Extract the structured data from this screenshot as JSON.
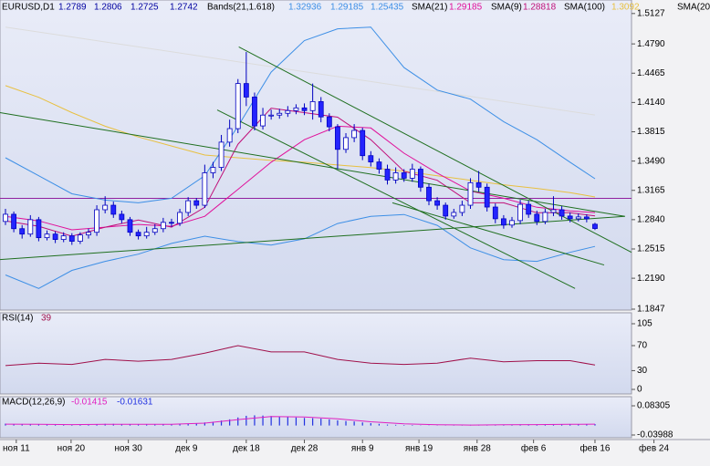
{
  "header": {
    "symbol": "EURUSD,D1"
  },
  "chart_data": [
    {
      "type": "candlestick",
      "open": [
        1.282,
        1.29,
        1.274,
        1.268,
        1.284,
        1.264,
        1.268,
        1.262,
        1.266,
        1.26,
        1.267,
        1.27,
        1.295,
        1.3,
        1.29,
        1.284,
        1.27,
        1.266,
        1.27,
        1.274,
        1.281,
        1.28,
        1.292,
        1.305,
        1.3,
        1.336,
        1.342,
        1.37,
        1.385,
        1.435,
        1.42,
        1.388,
        1.4,
        1.4,
        1.402,
        1.405,
        1.408,
        1.405,
        1.415,
        1.398,
        1.387,
        1.362,
        1.375,
        1.383,
        1.355,
        1.348,
        1.34,
        1.328,
        1.336,
        1.33,
        1.34,
        1.32,
        1.305,
        1.3,
        1.288,
        1.292,
        1.3,
        1.325,
        1.32,
        1.298,
        1.285,
        1.278,
        1.283,
        1.301,
        1.29,
        1.282,
        1.292,
        1.295,
        1.288,
        1.285,
        1.287,
        1.2789
      ],
      "high": [
        1.296,
        1.293,
        1.278,
        1.289,
        1.287,
        1.272,
        1.271,
        1.27,
        1.269,
        1.27,
        1.274,
        1.3,
        1.31,
        1.304,
        1.294,
        1.287,
        1.273,
        1.276,
        1.279,
        1.286,
        1.285,
        1.296,
        1.309,
        1.308,
        1.345,
        1.348,
        1.378,
        1.395,
        1.44,
        1.47,
        1.425,
        1.408,
        1.406,
        1.407,
        1.41,
        1.412,
        1.413,
        1.435,
        1.42,
        1.402,
        1.39,
        1.38,
        1.39,
        1.386,
        1.36,
        1.352,
        1.345,
        1.342,
        1.34,
        1.346,
        1.343,
        1.324,
        1.309,
        1.303,
        1.296,
        1.305,
        1.33,
        1.338,
        1.324,
        1.302,
        1.289,
        1.287,
        1.306,
        1.305,
        1.294,
        1.296,
        1.31,
        1.299,
        1.292,
        1.291,
        1.29,
        1.2806
      ],
      "low": [
        1.278,
        1.27,
        1.263,
        1.265,
        1.26,
        1.261,
        1.258,
        1.259,
        1.256,
        1.257,
        1.263,
        1.266,
        1.291,
        1.286,
        1.28,
        1.266,
        1.262,
        1.263,
        1.267,
        1.27,
        1.276,
        1.277,
        1.288,
        1.296,
        1.297,
        1.33,
        1.338,
        1.365,
        1.38,
        1.41,
        1.383,
        1.384,
        1.395,
        1.396,
        1.398,
        1.401,
        1.4,
        1.395,
        1.392,
        1.382,
        1.34,
        1.358,
        1.37,
        1.35,
        1.343,
        1.335,
        1.323,
        1.324,
        1.326,
        1.326,
        1.315,
        1.3,
        1.295,
        1.284,
        1.285,
        1.288,
        1.296,
        1.315,
        1.293,
        1.28,
        1.274,
        1.275,
        1.279,
        1.286,
        1.278,
        1.279,
        1.288,
        1.284,
        1.281,
        1.282,
        1.281,
        1.2725
      ],
      "close": [
        1.29,
        1.274,
        1.268,
        1.284,
        1.264,
        1.268,
        1.262,
        1.266,
        1.26,
        1.267,
        1.27,
        1.295,
        1.3,
        1.29,
        1.284,
        1.27,
        1.266,
        1.27,
        1.274,
        1.281,
        1.28,
        1.292,
        1.305,
        1.3,
        1.336,
        1.342,
        1.37,
        1.385,
        1.435,
        1.42,
        1.388,
        1.4,
        1.4,
        1.402,
        1.405,
        1.408,
        1.405,
        1.415,
        1.398,
        1.387,
        1.362,
        1.375,
        1.383,
        1.355,
        1.348,
        1.34,
        1.328,
        1.336,
        1.33,
        1.34,
        1.32,
        1.305,
        1.3,
        1.288,
        1.292,
        1.3,
        1.325,
        1.32,
        1.298,
        1.285,
        1.278,
        1.283,
        1.301,
        1.29,
        1.282,
        1.292,
        1.295,
        1.288,
        1.285,
        1.287,
        1.285,
        1.2742
      ],
      "up_color": "#ffffff",
      "down_color": "#2424ff",
      "outline_color": "#0000c0",
      "xlim": [
        -0.66,
        75.4
      ],
      "xticks": [
        {
          "value": 1.3,
          "label": "ноя 11"
        },
        {
          "value": 7.9,
          "label": "ноя 20"
        },
        {
          "value": 14.8,
          "label": "ноя 30"
        },
        {
          "value": 21.8,
          "label": "дек 9"
        },
        {
          "value": 29,
          "label": "дек 18"
        },
        {
          "value": 36,
          "label": "дек 28"
        },
        {
          "value": 43,
          "label": "янв 9"
        },
        {
          "value": 49.8,
          "label": "янв 19"
        },
        {
          "value": 56.8,
          "label": "янв 28"
        },
        {
          "value": 63.6,
          "label": "фев 6"
        },
        {
          "value": 71,
          "label": "фев 16"
        },
        {
          "value": 78.1,
          "label": "фев 24"
        }
      ],
      "ylim": [
        1.1837,
        1.5277
      ],
      "yticks": [
        1.5127,
        {
          "value": 1.479,
          "label": "1.4790"
        },
        1.4465,
        {
          "value": 1.414,
          "label": "1.4140"
        },
        1.3815,
        {
          "value": 1.349,
          "label": "1.3490"
        },
        1.3165,
        {
          "value": 1.284,
          "label": "1.2840"
        },
        1.2515,
        {
          "value": 1.219,
          "label": "1.2190"
        },
        1.1847
      ],
      "indicator_x": [
        0,
        4,
        8,
        12,
        16,
        20,
        24,
        28,
        32,
        36,
        40,
        44,
        48,
        52,
        56,
        60,
        64,
        68,
        71
      ],
      "bands": {
        "name": "Bands(21,1.618)",
        "color": "#3d8fe6",
        "upper": [
          1.3527,
          1.3327,
          1.3127,
          1.3057,
          1.3027,
          1.3077,
          1.3327,
          1.3877,
          1.4477,
          1.4827,
          1.4957,
          1.4977,
          1.4527,
          1.4277,
          1.4177,
          1.3927,
          1.3727,
          1.3477,
          1.32936
        ],
        "lower": [
          1.2227,
          1.2077,
          1.2277,
          1.2377,
          1.2457,
          1.2577,
          1.2657,
          1.2597,
          1.2557,
          1.2627,
          1.2797,
          1.2877,
          1.2897,
          1.2777,
          1.2527,
          1.2397,
          1.2377,
          1.2477,
          1.25435
        ]
      },
      "sma": [
        {
          "name": "SMA(21)",
          "color": "#e0109a",
          "values": [
            1.2877,
            1.2827,
            1.2727,
            1.2757,
            1.2787,
            1.2767,
            1.2877,
            1.3177,
            1.3477,
            1.3727,
            1.3877,
            1.3857,
            1.3577,
            1.3357,
            1.3157,
            1.3077,
            1.2977,
            1.2937,
            1.29185
          ]
        },
        {
          "name": "SMA(9)",
          "color": "#c0107a",
          "values": [
            1.2827,
            1.2767,
            1.2657,
            1.2757,
            1.2837,
            1.2757,
            1.2977,
            1.3677,
            1.4077,
            1.4027,
            1.3977,
            1.3727,
            1.3377,
            1.3277,
            1.3027,
            1.3027,
            1.2917,
            1.2917,
            1.28818
          ]
        },
        {
          "name": "SMA(100)",
          "color": "#e8c040",
          "values": [
            1.4327,
            1.4197,
            1.4027,
            1.3877,
            1.3757,
            1.3657,
            1.3557,
            1.3527,
            1.3497,
            1.3477,
            1.3447,
            1.3417,
            1.3377,
            1.3327,
            1.3277,
            1.3227,
            1.3187,
            1.314,
            1.3092
          ]
        },
        {
          "name": "SMA(20",
          "color": "#dcdcdc",
          "values": [
            1.4977,
            1.4922,
            1.4867,
            1.4812,
            1.4757,
            1.4702,
            1.4647,
            1.4592,
            1.4537,
            1.4482,
            1.4427,
            1.4372,
            1.4317,
            1.4262,
            1.4207,
            1.4152,
            1.4097,
            1.4042,
            1.4001
          ]
        }
      ],
      "hline": {
        "value": 1.3077,
        "color": "#9020a0"
      },
      "trendlines": {
        "color": "#1f6f1f",
        "lines": [
          {
            "x": [
              -0.66,
              74.6
            ],
            "y": [
              1.4027,
              1.2877
            ]
          },
          {
            "x": [
              -0.66,
              74.6
            ],
            "y": [
              1.2397,
              1.2877
            ]
          },
          {
            "x": [
              28.1,
              75.4
            ],
            "y": [
              1.4757,
              1.2477
            ]
          },
          {
            "x": [
              25.5,
              68.6
            ],
            "y": [
              1.4057,
              1.2077
            ]
          },
          {
            "x": [
              46.6,
              72.1
            ],
            "y": [
              1.3027,
              1.2337
            ]
          }
        ]
      }
    },
    {
      "type": "line",
      "title": "RSI(14)",
      "color": "#a0104a",
      "x": [
        0,
        4,
        8,
        12,
        16,
        20,
        24,
        28,
        32,
        36,
        40,
        44,
        48,
        52,
        56,
        60,
        64,
        68,
        71
      ],
      "values": [
        38,
        42,
        40,
        48,
        45,
        48,
        58,
        70,
        60,
        60,
        48,
        42,
        40,
        42,
        50,
        44,
        46,
        46,
        39
      ],
      "ylim": [
        -7.3,
        122.5
      ],
      "yticks": [
        105,
        70,
        30,
        0
      ]
    },
    {
      "type": "macd",
      "title": "MACD(12,26,9)",
      "legend_values": [
        "-0.01415",
        "-0.01631"
      ],
      "color": "#2030e0",
      "signal_color": "#e020c0",
      "histogram": [
        0.008,
        0.006,
        0.005,
        0.006,
        0.005,
        0.004,
        0.004,
        0.003,
        0.003,
        0.003,
        0.003,
        0.005,
        0.007,
        0.007,
        0.006,
        0.005,
        0.004,
        0.004,
        0.004,
        0.005,
        0.005,
        0.006,
        0.008,
        0.009,
        0.013,
        0.016,
        0.021,
        0.026,
        0.034,
        0.041,
        0.043,
        0.042,
        0.04,
        0.038,
        0.036,
        0.034,
        0.032,
        0.031,
        0.029,
        0.026,
        0.022,
        0.019,
        0.017,
        0.013,
        0.01,
        0.007,
        0.004,
        0.003,
        0.002,
        0.002,
        0.001,
        0.001,
        0.001,
        0.001,
        0.002,
        0.002,
        0.003,
        0.004,
        0.004,
        0.003,
        0.003,
        0.004,
        0.005,
        0.005,
        0.005,
        0.006,
        0.006,
        0.006,
        0.006,
        0.006,
        0.006,
        0.006
      ],
      "signal": {
        "x": [
          0,
          4,
          8,
          12,
          16,
          20,
          24,
          28,
          32,
          36,
          40,
          44,
          48,
          52,
          56,
          60,
          64,
          68,
          71
        ],
        "values": [
          0.006,
          0.005,
          0.004,
          0.005,
          0.005,
          0.005,
          0.01,
          0.025,
          0.038,
          0.036,
          0.028,
          0.016,
          0.007,
          0.003,
          0.002,
          0.003,
          0.004,
          0.005,
          0.006
        ]
      },
      "ylim": [
        -0.0514,
        0.1215
      ],
      "yticks": [
        0.08305,
        -0.03988
      ]
    }
  ]
}
